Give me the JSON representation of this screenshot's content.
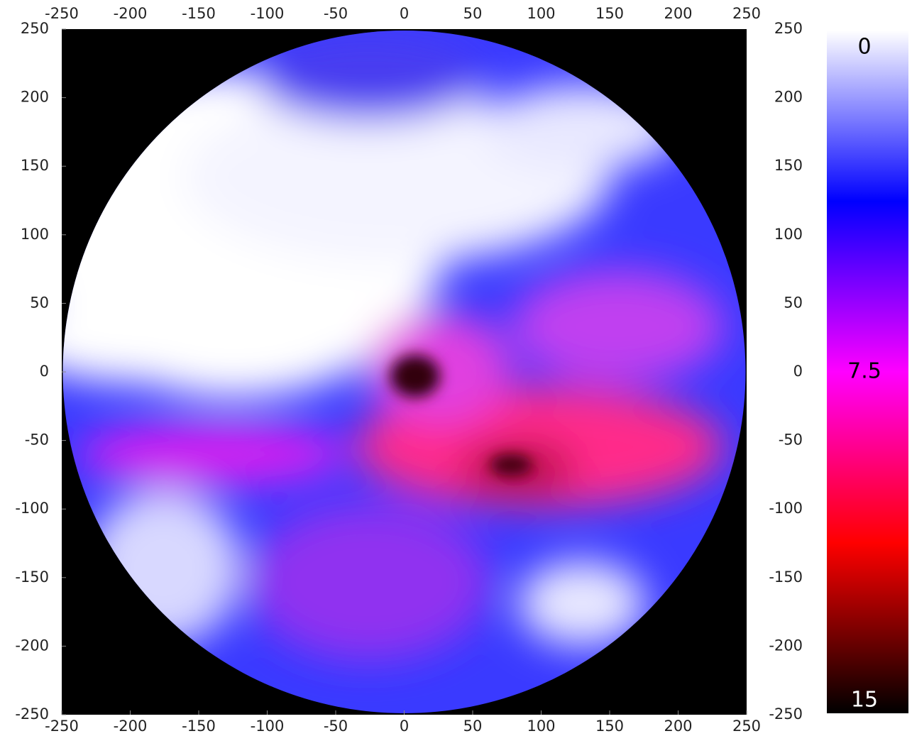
{
  "chart_data": {
    "type": "heatmap",
    "xlim": [
      -250,
      250
    ],
    "ylim": [
      -250,
      250
    ],
    "xticks": [
      -250,
      -200,
      -150,
      -100,
      -50,
      0,
      50,
      100,
      150,
      200,
      250
    ],
    "yticks": [
      -250,
      -200,
      -150,
      -100,
      -50,
      0,
      50,
      100,
      150,
      200,
      250
    ],
    "colorbar": {
      "lim": [
        0,
        15
      ],
      "ticks": [
        0,
        7.5,
        15
      ],
      "colors": [
        "#ffffff",
        "#0000ff",
        "#ff00ff",
        "#ff0000",
        "#000000"
      ]
    }
  }
}
